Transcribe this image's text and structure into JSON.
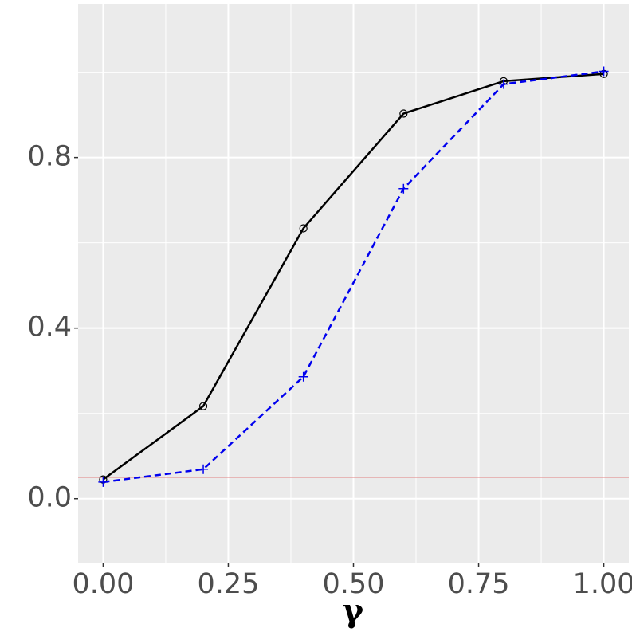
{
  "chart_data": {
    "type": "line",
    "x_label": "γ",
    "x": [
      0,
      0.2,
      0.4,
      0.6,
      0.8,
      1
    ],
    "series": [
      {
        "color": "#000000",
        "marker": "circle",
        "dash": false,
        "values": [
          0.045,
          0.217,
          0.634,
          0.903,
          0.979,
          0.996
        ]
      },
      {
        "color": "#0000ee",
        "marker": "plus",
        "dash": true,
        "values": [
          0.039,
          0.069,
          0.286,
          0.727,
          0.972,
          1.002
        ]
      }
    ],
    "hline": {
      "value": 0.05,
      "color": "#e08080"
    },
    "xlim": [
      -0.05,
      1.05
    ],
    "ylim": [
      -0.15,
      1.16
    ],
    "xticks": [
      {
        "value": 0,
        "label": "0.00"
      },
      0.25,
      {
        "value": 0.5,
        "label": "0.50"
      },
      0.75,
      {
        "value": 1,
        "label": "1.00"
      }
    ],
    "yticks": [
      {
        "value": 0,
        "label": "0.0"
      },
      0.4,
      0.8
    ],
    "x_minor_ticks": [
      0.125,
      0.375,
      0.625,
      0.875
    ],
    "y_minor_ticks": [
      0.2,
      0.6,
      1
    ],
    "grid": true
  }
}
